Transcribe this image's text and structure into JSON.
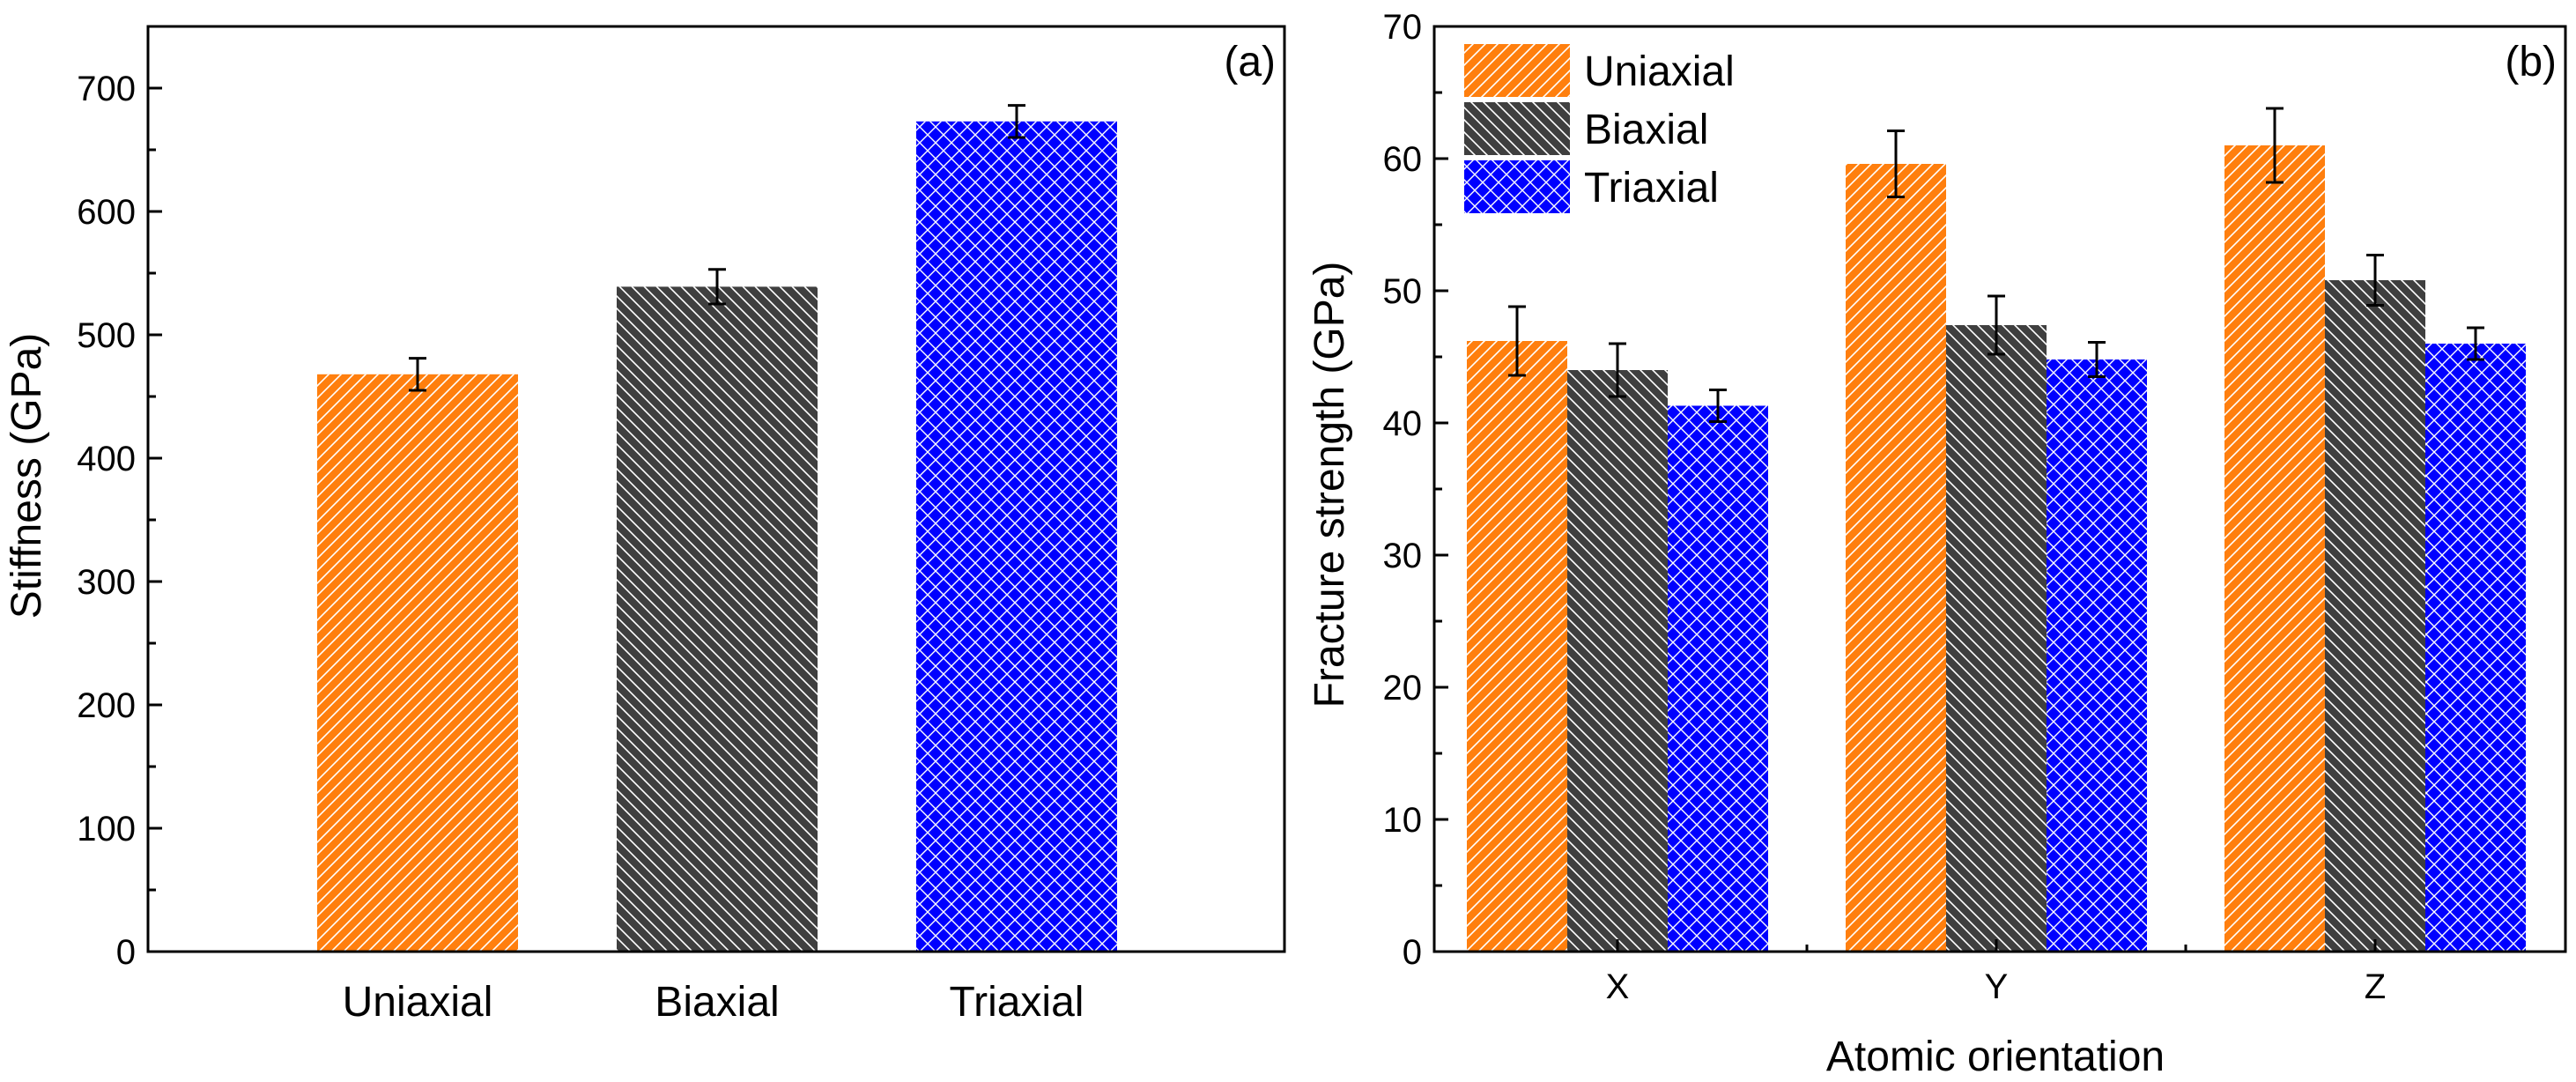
{
  "chart_data": [
    {
      "type": "bar",
      "panel_label": "(a)",
      "title": "",
      "xlabel": "",
      "ylabel": "Stiffness (GPa)",
      "categories": [
        "Uniaxial",
        "Biaxial",
        "Triaxial"
      ],
      "values": [
        468,
        539,
        673
      ],
      "errors": [
        13,
        14,
        13
      ],
      "ylim": [
        0,
        750
      ],
      "yticks": [
        0,
        100,
        200,
        300,
        400,
        500,
        600,
        700
      ],
      "ytick_labels": [
        "0",
        "100",
        "200",
        "300",
        "400",
        "500",
        "600",
        "700"
      ],
      "colors": [
        "#ff7f0e",
        "#3f3f3f",
        "#0000ff"
      ],
      "patterns": [
        "diagonal-forward",
        "diagonal-back",
        "crosshatch"
      ],
      "legend": "none",
      "grid": false
    },
    {
      "type": "bar",
      "panel_label": "(b)",
      "title": "",
      "xlabel": "Atomic orientation",
      "ylabel": "Fracture strength (GPa)",
      "categories": [
        "X",
        "Y",
        "Z"
      ],
      "series": [
        {
          "name": "Uniaxial",
          "values": [
            46.2,
            59.6,
            61.0
          ],
          "errors": [
            2.6,
            2.5,
            2.8
          ],
          "color": "#ff7f0e",
          "pattern": "diagonal-forward"
        },
        {
          "name": "Biaxial",
          "values": [
            44.0,
            47.4,
            50.8
          ],
          "errors": [
            2.0,
            2.2,
            1.9
          ],
          "color": "#3f3f3f",
          "pattern": "diagonal-back"
        },
        {
          "name": "Triaxial",
          "values": [
            41.3,
            44.8,
            46.0
          ],
          "errors": [
            1.2,
            1.3,
            1.2
          ],
          "color": "#0000ff",
          "pattern": "crosshatch"
        }
      ],
      "ylim": [
        0,
        70
      ],
      "yticks": [
        0,
        10,
        20,
        30,
        40,
        50,
        60,
        70
      ],
      "ytick_labels": [
        "0",
        "10",
        "20",
        "30",
        "40",
        "50",
        "60",
        "70"
      ],
      "legend": "top-left",
      "grid": false
    }
  ]
}
